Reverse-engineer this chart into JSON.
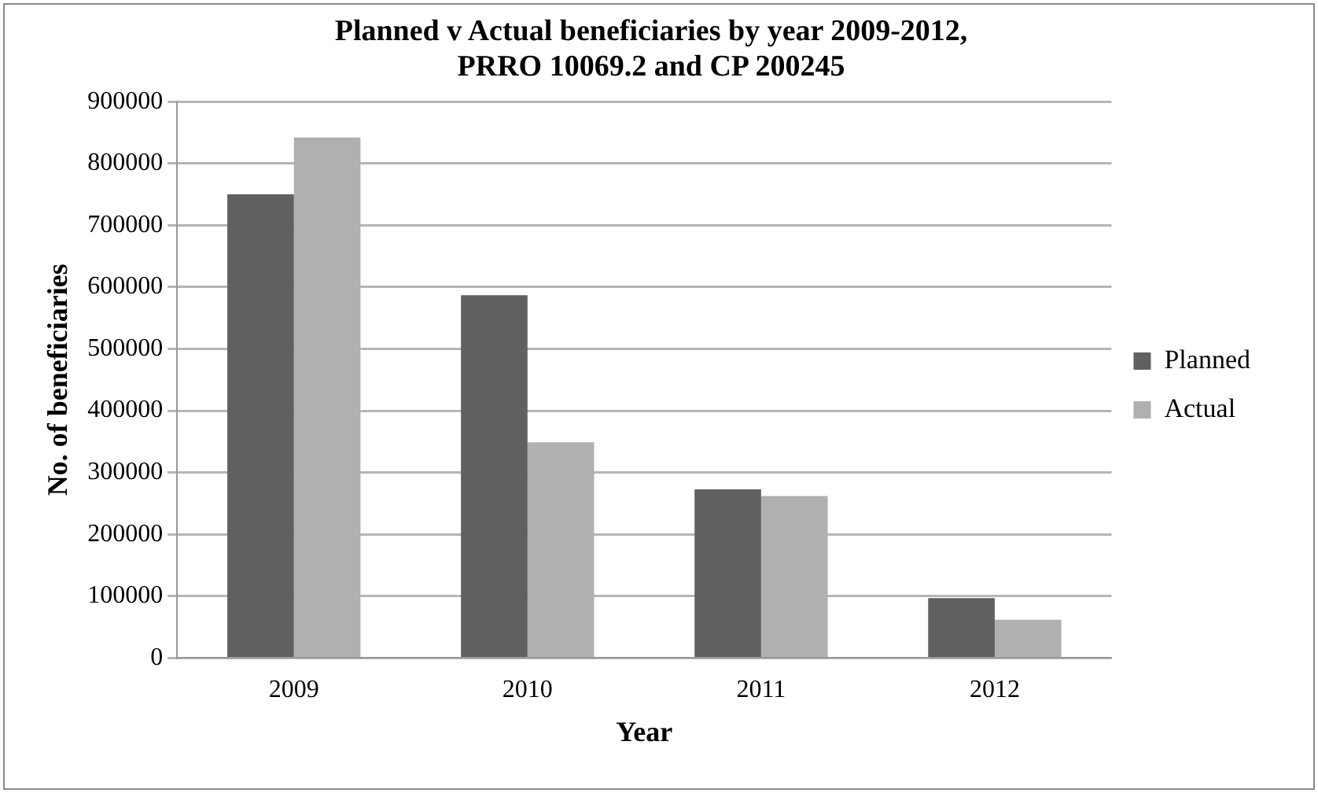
{
  "chart_data": {
    "type": "bar",
    "title": [
      "Planned v Actual beneficiaries by year 2009-2012,",
      "PRRO 10069.2 and CP 200245"
    ],
    "xlabel": "Year",
    "ylabel": "No. of beneficiaries",
    "categories": [
      "2009",
      "2010",
      "2011",
      "2012"
    ],
    "series": [
      {
        "name": "Planned",
        "color": "#606060",
        "values": [
          750000,
          587000,
          273000,
          97000
        ]
      },
      {
        "name": "Actual",
        "color": "#b0b0b0",
        "values": [
          842000,
          349000,
          262000,
          62000
        ]
      }
    ],
    "ylim": [
      0,
      900000
    ],
    "yticks": [
      0,
      100000,
      200000,
      300000,
      400000,
      500000,
      600000,
      700000,
      800000,
      900000
    ],
    "grid": "y",
    "legend": "right"
  }
}
